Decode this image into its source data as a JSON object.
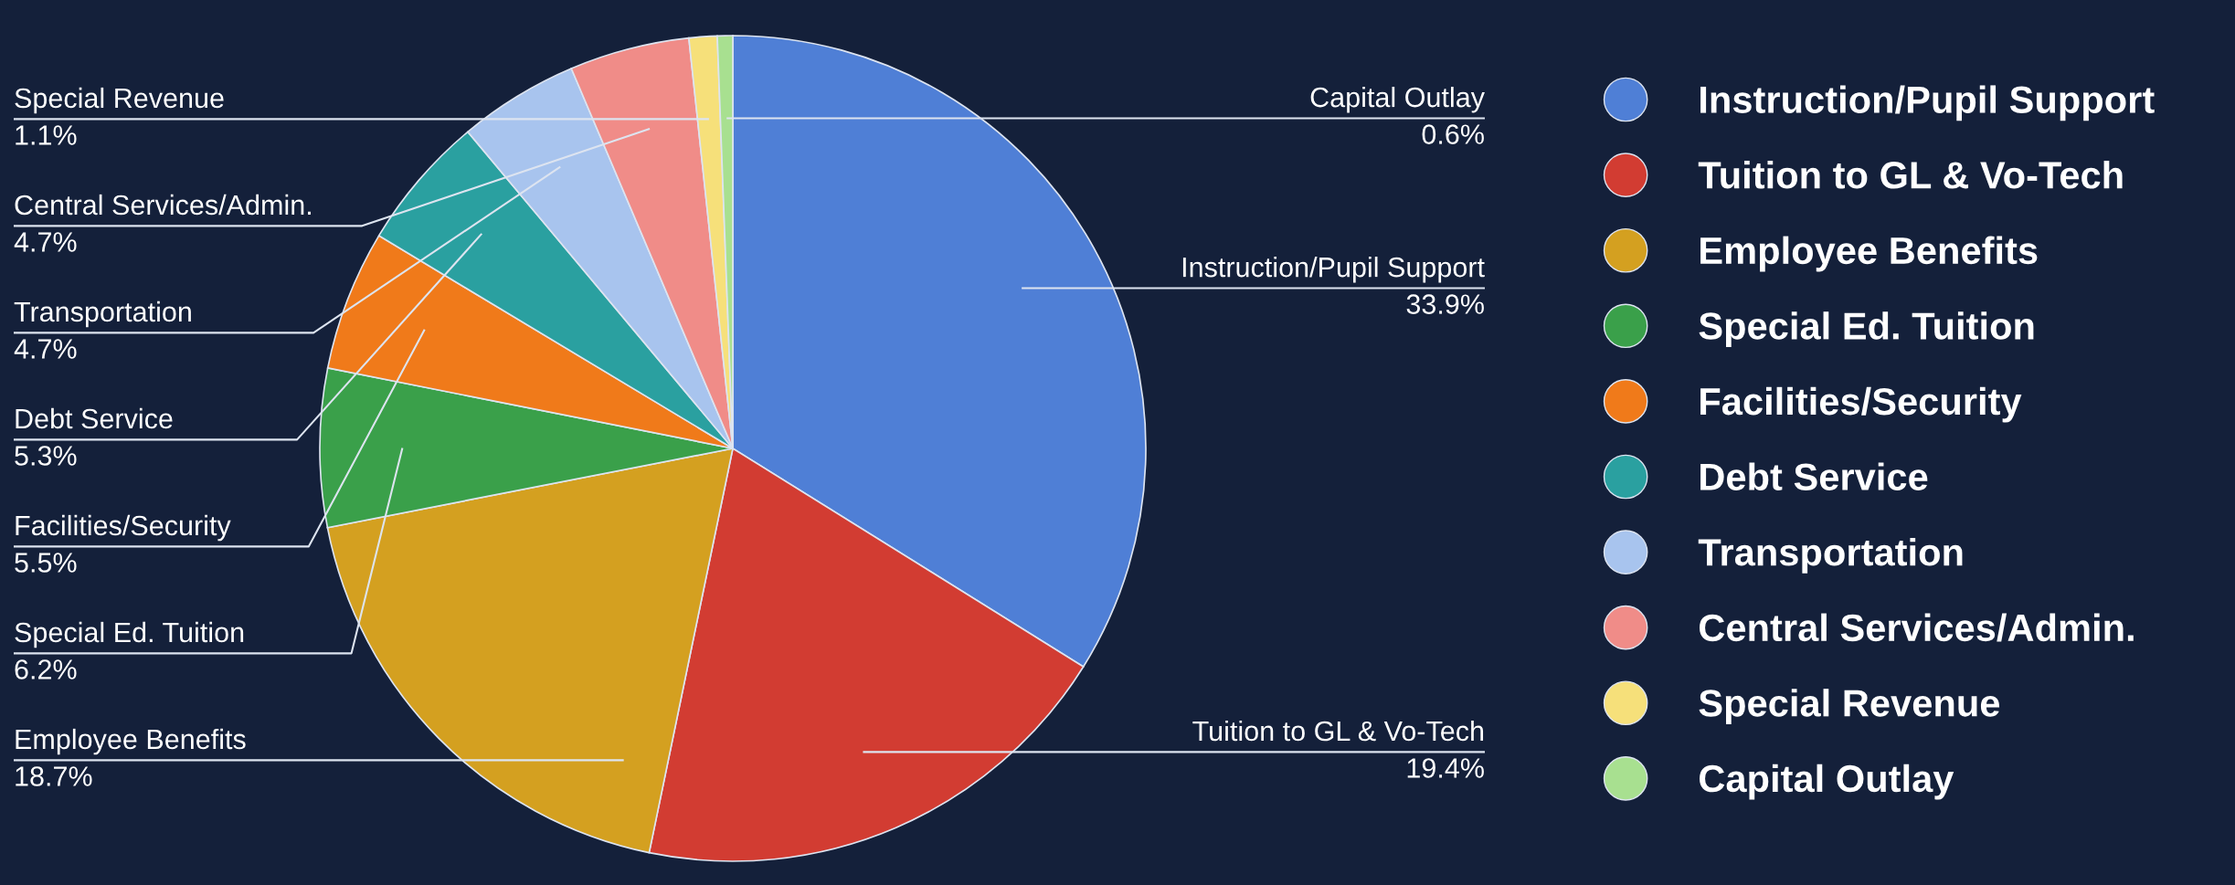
{
  "chart_data": {
    "type": "pie",
    "categories": [
      "Instruction/Pupil Support",
      "Tuition to GL & Vo-Tech",
      "Employee Benefits",
      "Special Ed. Tuition",
      "Facilities/Security",
      "Debt Service",
      "Transportation",
      "Central Services/Admin.",
      "Special Revenue",
      "Capital Outlay"
    ],
    "values": [
      33.9,
      19.4,
      18.7,
      6.2,
      5.5,
      5.3,
      4.7,
      4.7,
      1.1,
      0.6
    ],
    "colors": [
      "#4f7fd6",
      "#d23c32",
      "#d4a020",
      "#3aa04a",
      "#f07a1a",
      "#2aa0a0",
      "#a8c4ee",
      "#f08c88",
      "#f6e07a",
      "#a8e090"
    ],
    "value_labels": [
      "33.9%",
      "19.4%",
      "18.7%",
      "6.2%",
      "5.5%",
      "5.3%",
      "4.7%",
      "4.7%",
      "1.1%",
      "0.6%"
    ],
    "legend": "right"
  }
}
